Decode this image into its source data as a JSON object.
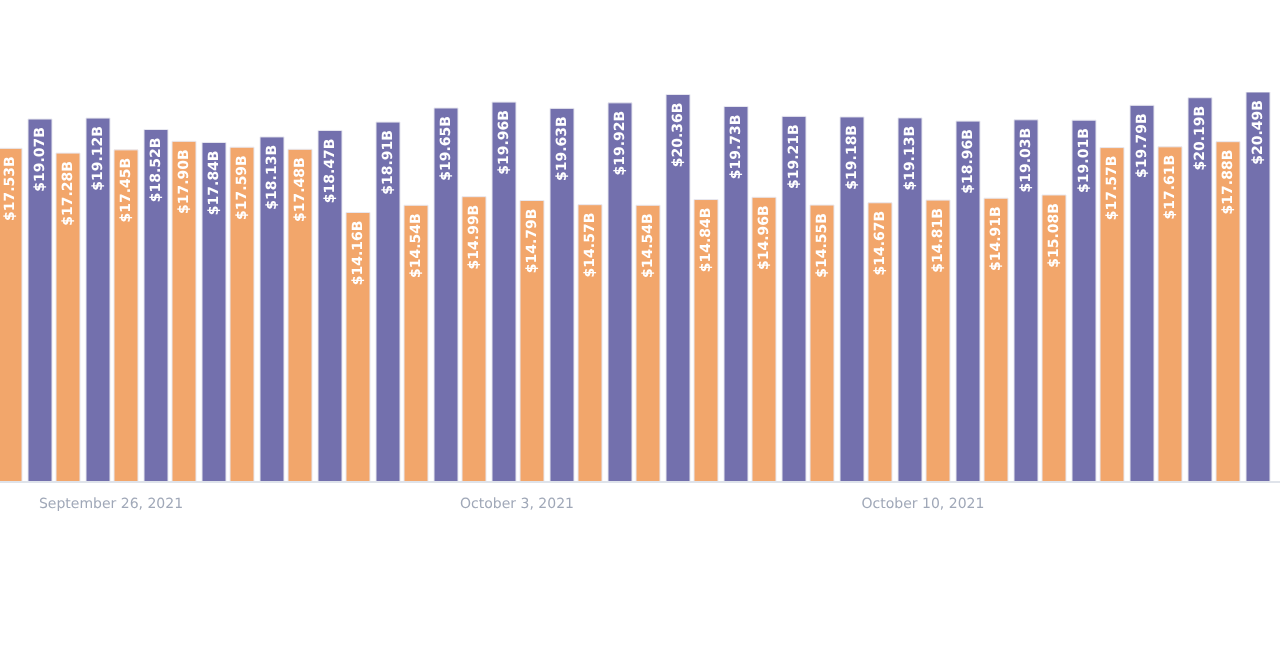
{
  "chart_data": {
    "type": "bar",
    "categories": [
      null,
      null,
      "September 26, 2021",
      null,
      null,
      null,
      null,
      null,
      null,
      "October 3, 2021",
      null,
      null,
      null,
      null,
      null,
      null,
      "October 10, 2021",
      null,
      null,
      null,
      null,
      null,
      null
    ],
    "series": [
      {
        "color": "#7370ad",
        "values": [
          null,
          19.07,
          19.12,
          18.52,
          17.84,
          18.13,
          18.47,
          18.91,
          19.65,
          19.96,
          19.63,
          19.92,
          20.36,
          19.73,
          19.21,
          19.18,
          19.13,
          18.96,
          19.03,
          19.01,
          19.79,
          20.19,
          20.49
        ],
        "value_labels": [
          null,
          "$19.07B",
          "$19.12B",
          "$18.52B",
          "$17.84B",
          "$18.13B",
          "$18.47B",
          "$18.91B",
          "$19.65B",
          "$19.96B",
          "$19.63B",
          "$19.92B",
          "$20.36B",
          "$19.73B",
          "$19.21B",
          "$19.18B",
          "$19.13B",
          "$18.96B",
          "$19.03B",
          "$19.01B",
          "$19.79B",
          "$20.19B",
          "$20.49B"
        ]
      },
      {
        "color": "#f2a66b",
        "values": [
          17.53,
          17.28,
          17.45,
          17.9,
          17.59,
          17.48,
          14.16,
          14.54,
          14.99,
          14.79,
          14.57,
          14.54,
          14.84,
          14.96,
          14.55,
          14.67,
          14.81,
          14.91,
          15.08,
          17.57,
          17.61,
          17.88,
          null
        ],
        "value_labels": [
          "$17.53B",
          "$17.28B",
          "$17.45B",
          "$17.90B",
          "$17.59B",
          "$17.48B",
          "$14.16B",
          "$14.54B",
          "$14.99B",
          "$14.79B",
          "$14.57B",
          "$14.54B",
          "$14.84B",
          "$14.96B",
          "$14.55B",
          "$14.67B",
          "$14.81B",
          "$14.91B",
          "$15.08B",
          "$17.57B",
          "$17.61B",
          "$17.88B",
          null
        ]
      }
    ],
    "legend": false,
    "grid": false
  }
}
